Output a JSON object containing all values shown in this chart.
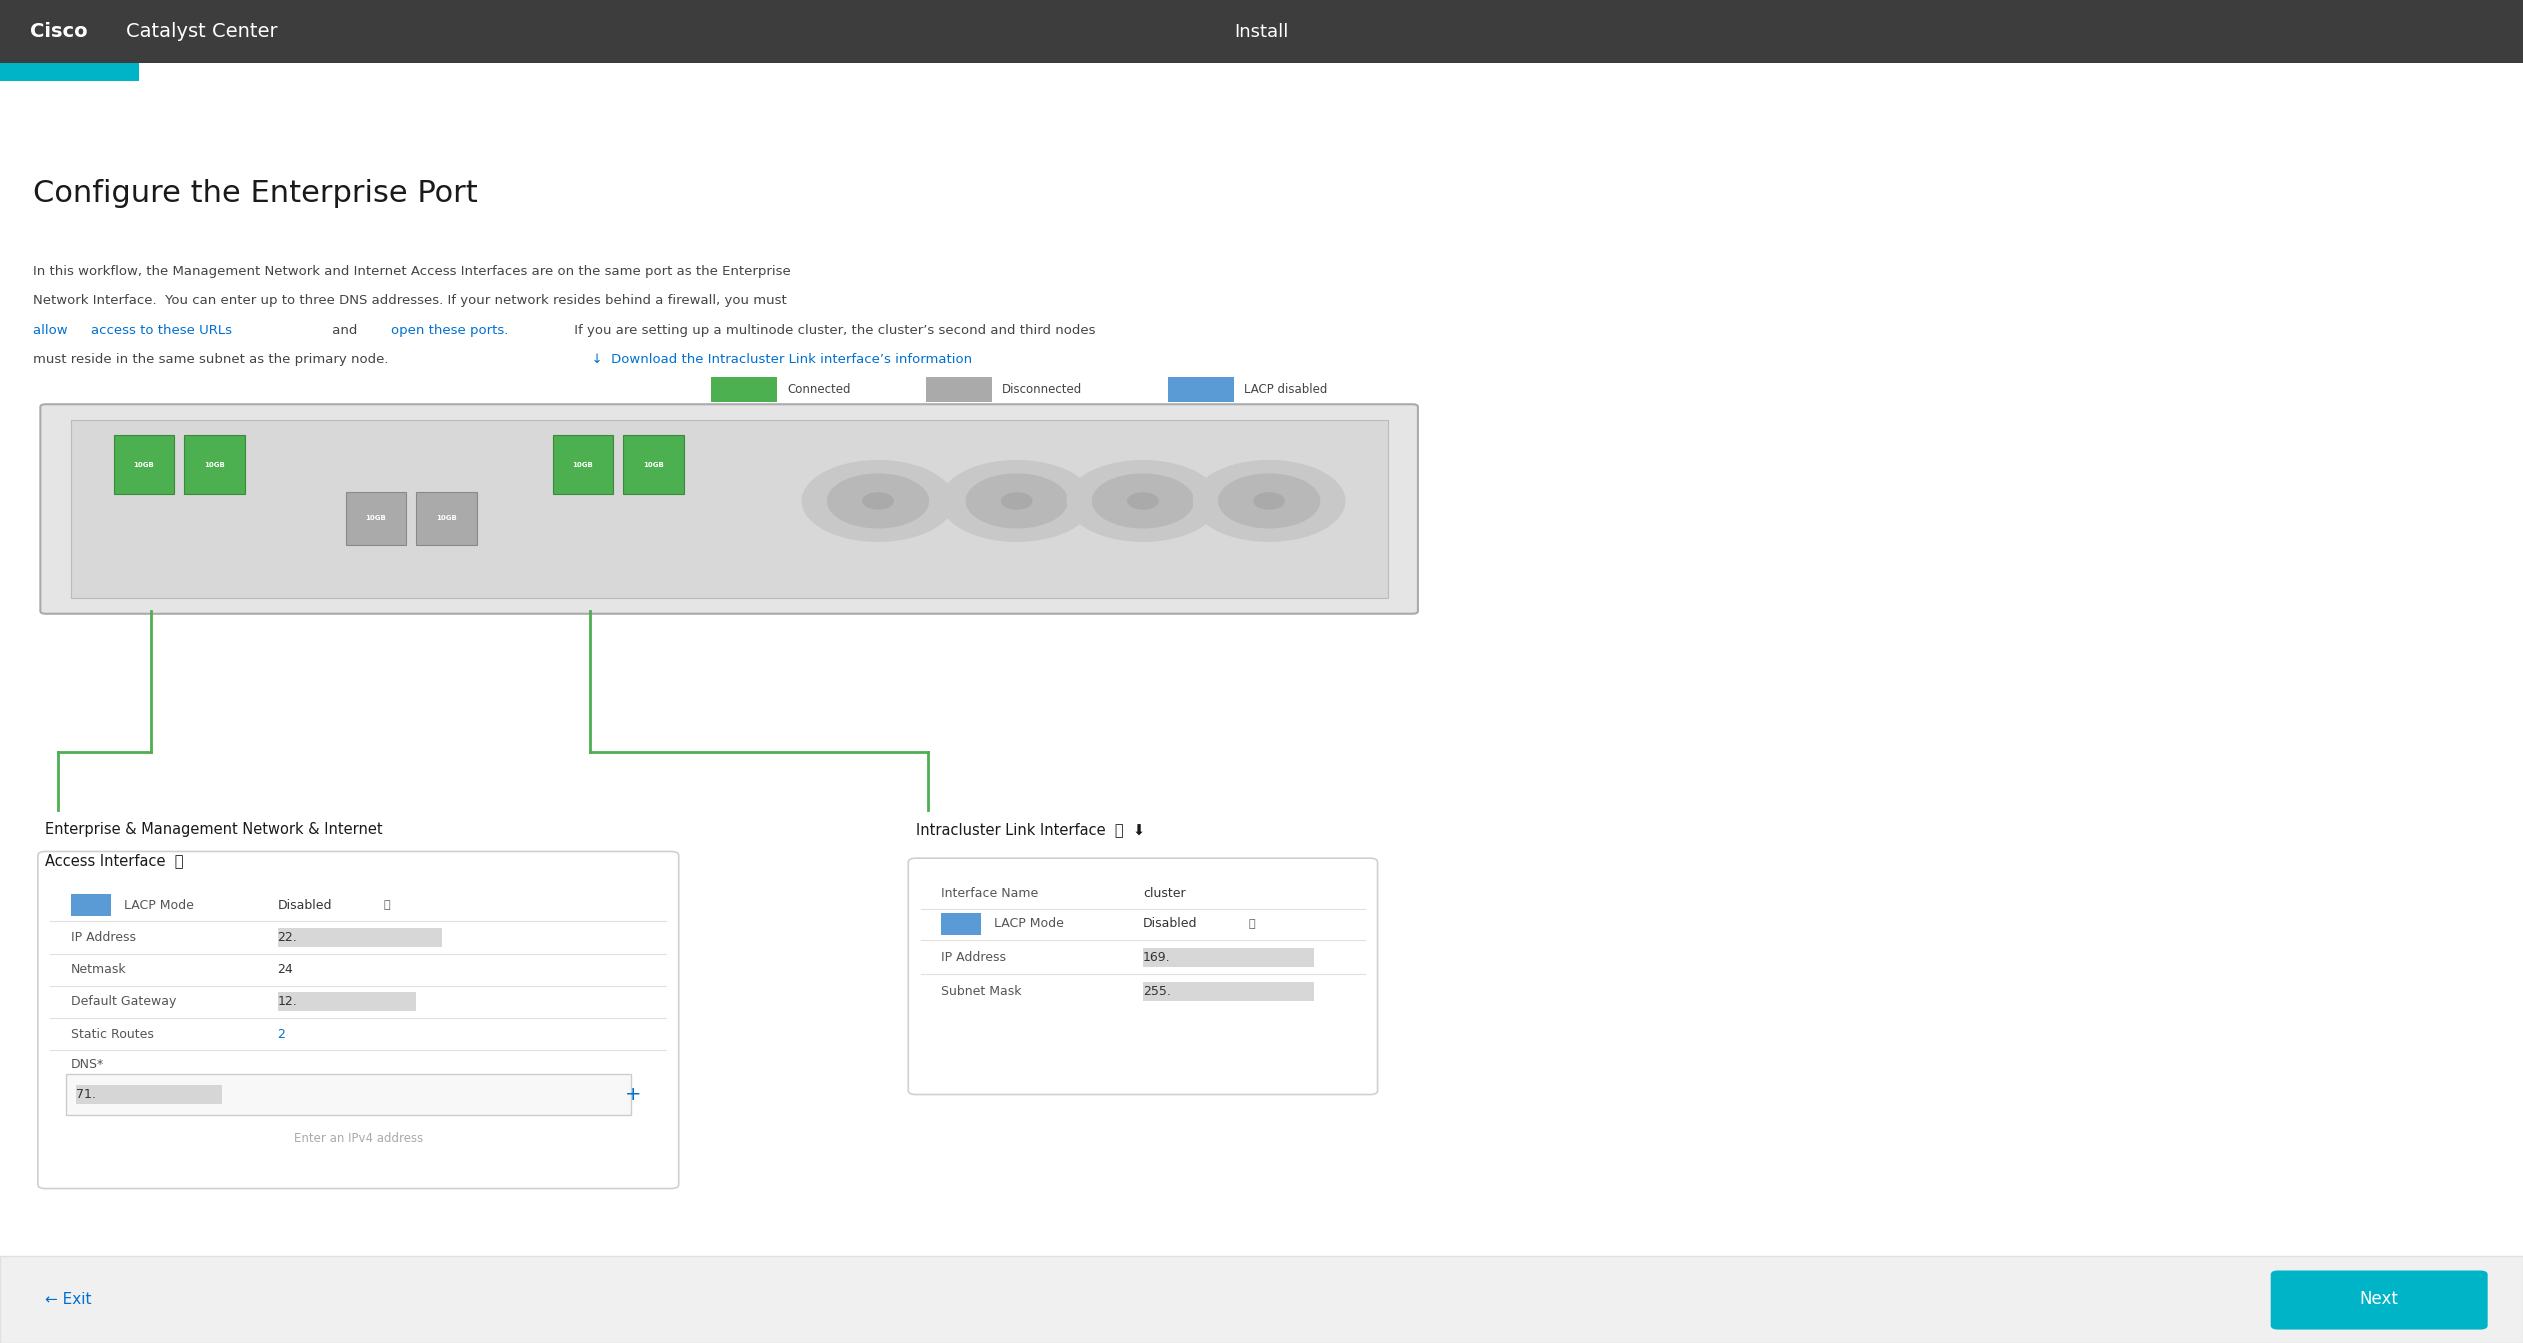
{
  "bg_color": "#ffffff",
  "header_bg": "#3d3d3d",
  "header_text": "Cisco Catalyst Center",
  "header_install": "Install",
  "teal_bar_color": "#00b4c8",
  "title": "Configure the Enterprise Port",
  "body_text_line1": "In this workflow, the Management Network and Internet Access Interfaces are on the same port as the Enterprise",
  "body_text_line2": "Network Interface.  You can enter up to three DNS addresses. If your network resides behind a firewall, you must",
  "body_link1": "allow",
  "body_text_line3": "access to these URLs",
  "body_text_line4": "open these ports.",
  "body_text_line5": " If you are setting up a multinode cluster, the cluster’s second and third nodes",
  "body_text_line6": "must reside in the same subnet as the primary node.",
  "download_link": "↓  Download the Intracluster Link interface’s information",
  "legend_connected": "Connected",
  "legend_disconnected": "Disconnected",
  "legend_lacp_disabled": "LACP disabled",
  "left_panel_title": "Enterprise & Management Network & Internet",
  "left_panel_title2": "Access Interface",
  "right_panel_title": "Intracluster Link Interface",
  "lacp_label": "LACP Mode",
  "lacp_value": "Disabled",
  "ip_label": "IP Address",
  "ip_value": "22.",
  "netmask_label": "Netmask",
  "netmask_value": "24",
  "gateway_label": "Default Gateway",
  "gateway_value": "12.",
  "static_label": "Static Routes",
  "static_value": "2",
  "dns_label": "DNS*",
  "dns_value": "71.",
  "dns_placeholder": "Enter an IPv4 address",
  "right_interface_label": "Interface Name",
  "right_interface_name": "cluster",
  "right_ip_value": "169.",
  "right_subnet_label": "Subnet Mask",
  "right_subnet_value": "255.",
  "exit_text": "← Exit",
  "next_text": "Next",
  "next_bg": "#00b4c8",
  "footer_bg": "#f0f0f0",
  "panel_bg": "#ffffff",
  "panel_border": "#d0d0d0",
  "label_color": "#555555",
  "value_color": "#333333",
  "link_color": "#0070d2",
  "download_color": "#0070d2",
  "blurred_color": "#cccccc",
  "sep_color": "#e0e0e0",
  "green_port": "#4caf50",
  "gray_port": "#aaaaaa",
  "blue_sq": "#5b9bd5"
}
